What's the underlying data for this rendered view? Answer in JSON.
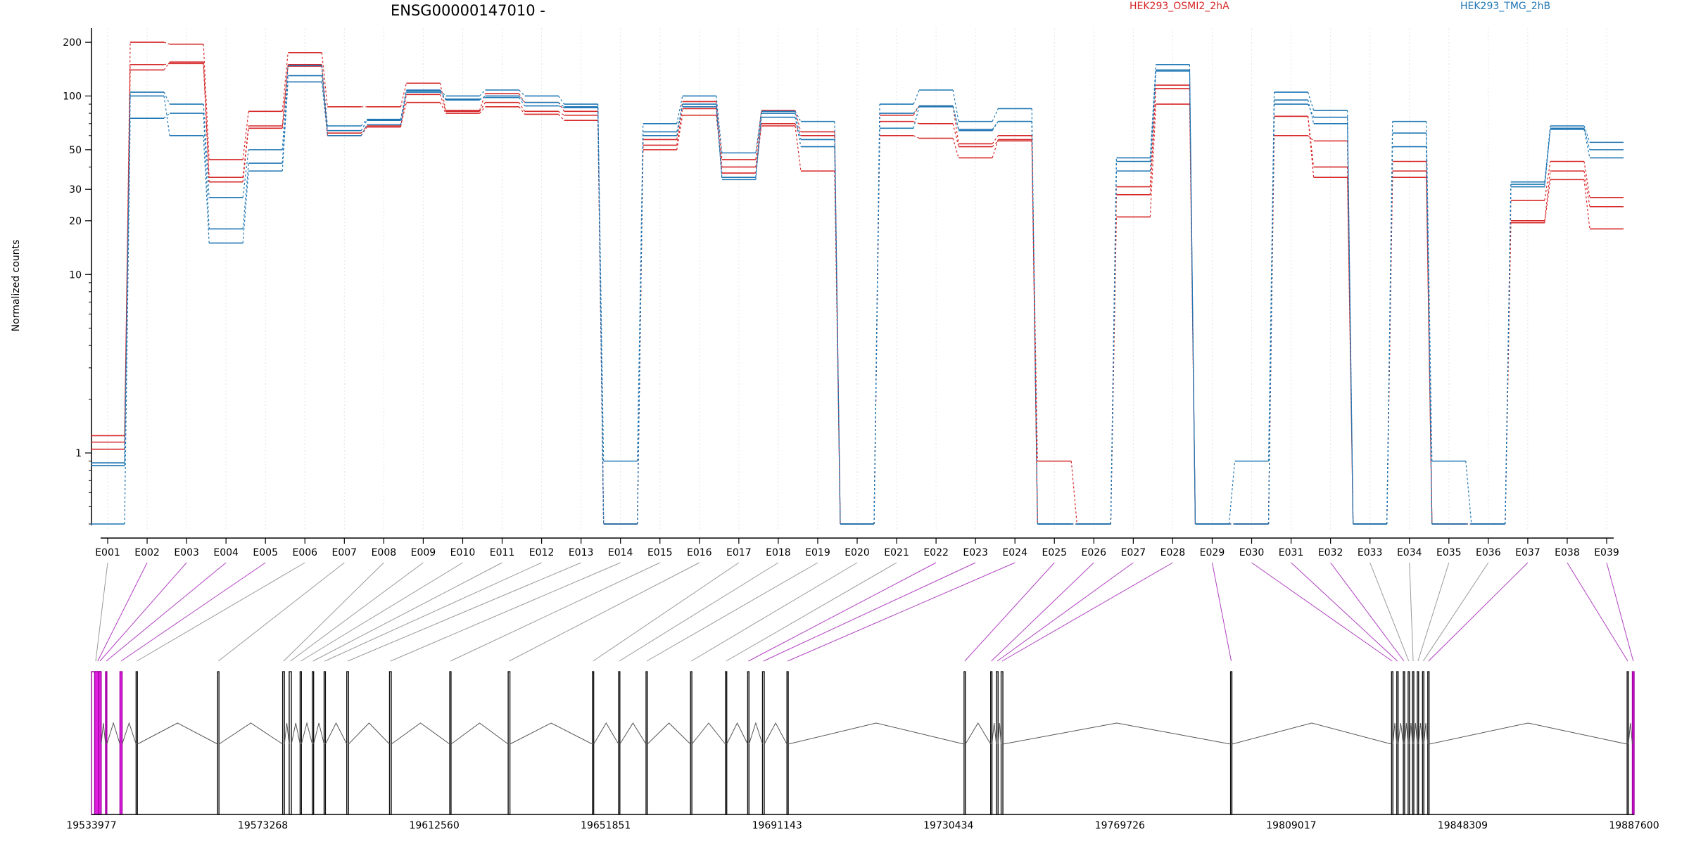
{
  "chart_data": {
    "type": "line",
    "title": "ENSG00000147010 -",
    "ylabel": "Normalized counts",
    "y_scale": "log",
    "ylim": [
      0.4,
      240
    ],
    "y_ticks": [
      1,
      10,
      20,
      30,
      50,
      100,
      200
    ],
    "grid": "vertical dotted at each exon",
    "legend_placement": "top",
    "exons": [
      "E001",
      "E002",
      "E003",
      "E004",
      "E005",
      "E006",
      "E007",
      "E008",
      "E009",
      "E010",
      "E011",
      "E012",
      "E013",
      "E014",
      "E015",
      "E016",
      "E017",
      "E018",
      "E019",
      "E020",
      "E021",
      "E022",
      "E023",
      "E024",
      "E025",
      "E026",
      "E027",
      "E028",
      "E029",
      "E030",
      "E031",
      "E032",
      "E033",
      "E034",
      "E035",
      "E036",
      "E037",
      "E038",
      "E039"
    ],
    "series": [
      {
        "name": "HEK293_OSMI2_2hA",
        "color": "#d62728",
        "values": [
          1.15,
          200,
          195,
          44,
          82,
          175,
          87,
          87,
          118,
          83,
          103,
          92,
          82,
          0.4,
          57,
          93,
          44,
          83,
          63,
          0.4,
          78,
          88,
          54,
          60,
          0.4,
          0.4,
          31,
          115,
          0.4,
          0.4,
          77,
          40,
          0.4,
          43,
          0.4,
          0.4,
          26,
          43,
          27
        ]
      },
      {
        "name": "",
        "color": "#d62728",
        "values": [
          1.25,
          150,
          152,
          35,
          68,
          150,
          62,
          68,
          92,
          80,
          87,
          79,
          73,
          0.4,
          50,
          78,
          40,
          70,
          60,
          0.4,
          60,
          58,
          45,
          57,
          0.9,
          0.4,
          21,
          90,
          0.4,
          0.4,
          60,
          56,
          0.4,
          38,
          0.4,
          0.4,
          20,
          38,
          24
        ]
      },
      {
        "name": "",
        "color": "#d62728",
        "values": [
          1.05,
          140,
          155,
          33,
          66,
          147,
          60,
          67,
          102,
          82,
          92,
          82,
          78,
          0.4,
          53,
          85,
          37,
          68,
          38,
          0.4,
          72,
          70,
          52,
          56,
          0.4,
          0.4,
          28,
          110,
          0.4,
          0.4,
          77,
          35,
          0.4,
          35,
          0.4,
          0.4,
          19.5,
          34,
          18
        ]
      },
      {
        "name": "HEK293_TMG_2hB",
        "color": "#1f77b4",
        "values": [
          0.88,
          105,
          90,
          27,
          50,
          148,
          68,
          74,
          108,
          100,
          108,
          100,
          90,
          0.9,
          70,
          100,
          48,
          82,
          72,
          0.4,
          90,
          108,
          72,
          85,
          0.4,
          0.4,
          45,
          150,
          0.4,
          0.9,
          105,
          83,
          0.4,
          72,
          0.9,
          0.4,
          33,
          68,
          55
        ]
      },
      {
        "name": "",
        "color": "#1f77b4",
        "values": [
          0.4,
          75,
          80,
          18,
          42,
          130,
          64,
          73,
          105,
          95,
          100,
          92,
          87,
          0.4,
          63,
          87,
          35,
          80,
          57,
          0.4,
          80,
          88,
          65,
          72,
          0.4,
          0.4,
          43,
          140,
          0.4,
          0.4,
          90,
          76,
          0.4,
          62,
          0.4,
          0.4,
          31,
          66,
          50
        ]
      },
      {
        "name": "",
        "color": "#1f77b4",
        "values": [
          0.85,
          100,
          60,
          15,
          38,
          120,
          60,
          69,
          107,
          96,
          98,
          88,
          86,
          0.4,
          60,
          90,
          34,
          76,
          52,
          0.4,
          66,
          87,
          64,
          72,
          0.4,
          0.4,
          38,
          138,
          0.4,
          0.4,
          95,
          70,
          0.4,
          52,
          0.4,
          0.4,
          32,
          65,
          45
        ]
      }
    ],
    "genomic_ticks": [
      "19533977",
      "19573268",
      "19612560",
      "19651851",
      "19691143",
      "19730434",
      "19769726",
      "19809017",
      "19848309",
      "19887600"
    ],
    "genomic_range": [
      19533977,
      19887600
    ],
    "exon_genomic_start": [
      19533977,
      19534700,
      19535600,
      19537200,
      19540500,
      19544200,
      19562900,
      19577800,
      19579300,
      19581800,
      19584600,
      19587300,
      19592500,
      19602300,
      19616100,
      19629500,
      19648800,
      19654800,
      19661100,
      19671300,
      19679300,
      19684400,
      19687800,
      19693400,
      19734000,
      19740100,
      19741400,
      19742500,
      19795100,
      19832000,
      19833200,
      19834700,
      19835800,
      19836800,
      19837900,
      19839100,
      19840300,
      19886000,
      19887200
    ],
    "exon_genomic_end": [
      19535900,
      19536100,
      19536200,
      19537500,
      19541000,
      19544500,
      19563200,
      19578200,
      19579800,
      19582100,
      19584900,
      19587600,
      19592900,
      19602700,
      19616400,
      19629900,
      19649100,
      19655100,
      19661400,
      19671600,
      19679600,
      19684700,
      19688200,
      19693700,
      19734300,
      19740400,
      19741800,
      19742900,
      19795400,
      19832300,
      19833500,
      19835000,
      19836100,
      19837100,
      19838200,
      19839400,
      19840600,
      19886300,
      19887600
    ],
    "connector_colors": [
      "#999999",
      "#b040c0",
      "#b040c0",
      "#b040c0",
      "#b040c0",
      "#999999",
      "#999999",
      "#999999",
      "#999999",
      "#999999",
      "#999999",
      "#999999",
      "#999999",
      "#999999",
      "#999999",
      "#999999",
      "#999999",
      "#999999",
      "#999999",
      "#999999",
      "#999999",
      "#b040c0",
      "#b040c0",
      "#b040c0",
      "#b040c0",
      "#b040c0",
      "#b040c0",
      "#b040c0",
      "#b040c0",
      "#b040c0",
      "#b040c0",
      "#b040c0",
      "#999999",
      "#999999",
      "#999999",
      "#999999",
      "#b040c0",
      "#b040c0",
      "#b040c0"
    ]
  }
}
